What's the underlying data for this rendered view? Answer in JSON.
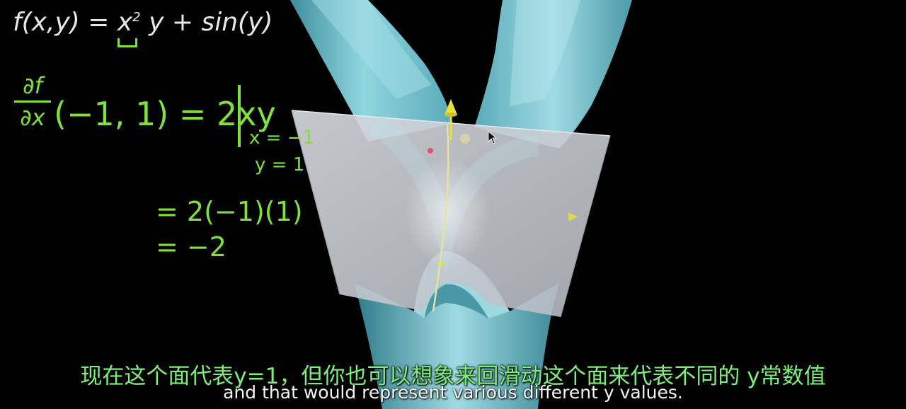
{
  "board": {
    "function_def": {
      "prefix": "f(x,y) = x",
      "exponent": "2",
      "suffix": "y + sin(y)"
    },
    "partial": {
      "numerator": "∂f",
      "denominator": "∂x",
      "expression": "(−1, 1) = 2xy"
    },
    "evaluated_at": {
      "x": "x = −1",
      "y": "y = 1"
    },
    "steps": [
      "= 2(−1)(1)",
      "= −2"
    ]
  },
  "subtitles": {
    "chinese": "现在这个面代表y=1，但你也可以想象来回滑动这个面来代表不同的 y常数值",
    "english": "and that would represent various different y values."
  },
  "colors": {
    "chalk_green": "#7fe23c",
    "chalk_white": "#e8e8e8",
    "surface_cyan": "#7fc6d2",
    "plane_gray": "#c9ccd2",
    "arrow_yellow": "#e7e23a",
    "subtitle_green": "#7df07a"
  },
  "icons": [
    "arrow-cursor-icon",
    "tangent-arrow-icon",
    "red-point-icon"
  ]
}
